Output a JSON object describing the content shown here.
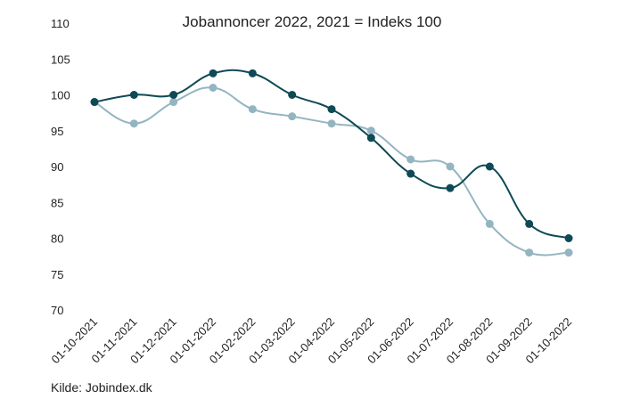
{
  "chart_data": {
    "type": "line",
    "title": "Jobannoncer 2022, 2021 = Indeks 100",
    "xlabel": "",
    "ylabel": "",
    "categories": [
      "01-10-2021",
      "01-11-2021",
      "01-12-2021",
      "01-01-2022",
      "01-02-2022",
      "01-03-2022",
      "01-04-2022",
      "01-05-2022",
      "01-06-2022",
      "01-07-2022",
      "01-08-2022",
      "01-09-2022",
      "01-10-2022"
    ],
    "series": [
      {
        "values": [
          99,
          100,
          100,
          103,
          103,
          100,
          98,
          94,
          89,
          87,
          90,
          82,
          80
        ],
        "color": "#0d4a55"
      },
      {
        "values": [
          99,
          96,
          99,
          101,
          98,
          97,
          96,
          95,
          91,
          90,
          82,
          78,
          78
        ],
        "color": "#93b5c1"
      }
    ],
    "ylim": [
      70,
      110
    ],
    "yticks": [
      70,
      75,
      80,
      85,
      90,
      95,
      100,
      105,
      110
    ],
    "grid": false,
    "legend": "none"
  },
  "source": "Kilde: Jobindex.dk"
}
